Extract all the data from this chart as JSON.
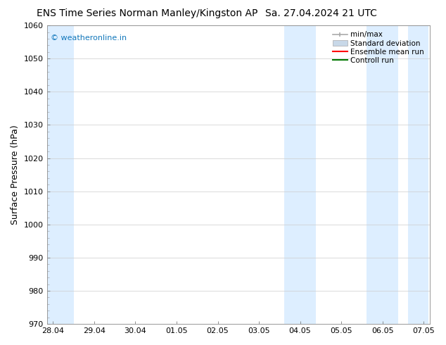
{
  "title": "ENS Time Series Norman Manley/Kingston AP",
  "title2": "Sa. 27.04.2024 21 UTC",
  "ylabel": "Surface Pressure (hPa)",
  "ylim": [
    970,
    1060
  ],
  "yticks": [
    970,
    980,
    990,
    1000,
    1010,
    1020,
    1030,
    1040,
    1050,
    1060
  ],
  "xtick_labels": [
    "28.04",
    "29.04",
    "30.04",
    "01.05",
    "02.05",
    "03.05",
    "04.05",
    "05.05",
    "06.05",
    "07.05"
  ],
  "num_xticks": 10,
  "xmin": 0,
  "xmax": 9,
  "shaded_bands": [
    {
      "x_start": -0.12,
      "x_end": 0.5
    },
    {
      "x_start": 5.62,
      "x_end": 6.38
    },
    {
      "x_start": 7.62,
      "x_end": 8.38
    },
    {
      "x_start": 8.62,
      "x_end": 9.12
    }
  ],
  "shade_color": "#ddeeff",
  "watermark": "© weatheronline.in",
  "watermark_color": "#1177bb",
  "legend_items": [
    {
      "label": "min/max",
      "color": "#aaaaaa",
      "type": "line_with_caps"
    },
    {
      "label": "Standard deviation",
      "color": "#c8d8e8",
      "type": "rect"
    },
    {
      "label": "Ensemble mean run",
      "color": "#ff0000",
      "type": "line"
    },
    {
      "label": "Controll run",
      "color": "#007700",
      "type": "line"
    }
  ],
  "bg_color": "#ffffff",
  "tick_font_size": 8,
  "ylabel_font_size": 9,
  "title_font_size": 10,
  "watermark_font_size": 8,
  "legend_font_size": 7.5
}
